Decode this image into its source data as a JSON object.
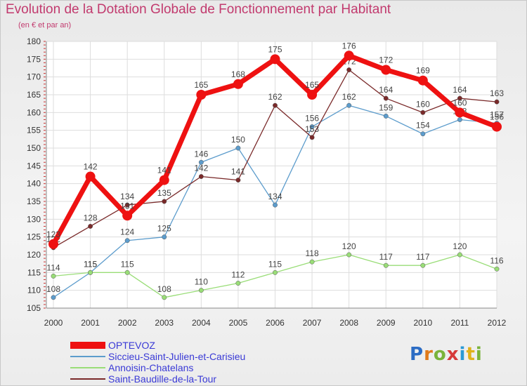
{
  "title": "Evolution de la Dotation Globale de Fonctionnement par Habitant",
  "subtitle": "(en € et par an)",
  "logo": {
    "text": "Proxiti",
    "letter_colors": [
      "#2b6cc4",
      "#e07a1a",
      "#7ab33a",
      "#d63a3a",
      "#2b9ad6",
      "#e0b21a",
      "#7ab33a"
    ]
  },
  "chart_data": {
    "type": "line",
    "title": "Evolution de la Dotation Globale de Fonctionnement par Habitant",
    "subtitle": "(en € et par an)",
    "xlabel": "",
    "ylabel": "",
    "x": [
      "2000",
      "2001",
      "2002",
      "2003",
      "2004",
      "2005",
      "2006",
      "2007",
      "2008",
      "2009",
      "2010",
      "2011",
      "2012"
    ],
    "ylim": [
      105,
      180
    ],
    "yticks": [
      105,
      110,
      115,
      120,
      125,
      130,
      135,
      140,
      145,
      150,
      155,
      160,
      165,
      170,
      175,
      180
    ],
    "grid": true,
    "legend_position": "bottom-left",
    "series": [
      {
        "name": "OPTEVOZ",
        "color": "#ee1111",
        "emphasis": true,
        "values": [
          123,
          142,
          131,
          141,
          165,
          168,
          175,
          165,
          176,
          172,
          169,
          160,
          156
        ]
      },
      {
        "name": "Siccieu-Saint-Julien-et-Carisieu",
        "color": "#5c9ccc",
        "emphasis": false,
        "values": [
          108,
          115,
          124,
          125,
          146,
          150,
          134,
          156,
          162,
          159,
          154,
          158,
          157
        ]
      },
      {
        "name": "Annoisin-Chatelans",
        "color": "#99dd77",
        "emphasis": false,
        "values": [
          114,
          115,
          115,
          108,
          110,
          112,
          115,
          118,
          120,
          117,
          117,
          120,
          116
        ]
      },
      {
        "name": "Saint-Baudille-de-la-Tour",
        "color": "#7a2a2a",
        "emphasis": false,
        "values": [
          122,
          128,
          134,
          135,
          142,
          141,
          162,
          153,
          172,
          164,
          160,
          164,
          163
        ]
      }
    ]
  }
}
